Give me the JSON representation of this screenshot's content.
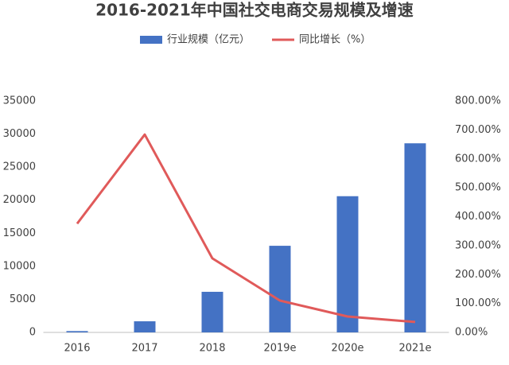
{
  "chart_data": {
    "type": "bar",
    "title": "2016-2021年中国社交电商交易规模及增速",
    "categories": [
      "2016",
      "2017",
      "2018",
      "2019e",
      "2020e",
      "2021e"
    ],
    "series": [
      {
        "name": "行业规模（亿元）",
        "type": "bar",
        "color": "#4472c4",
        "values": [
          200,
          1680,
          6140,
          13100,
          20600,
          28600
        ]
      },
      {
        "name": "同比增长（%）",
        "type": "line",
        "axis": "y2",
        "color": "#e05a5a",
        "values": [
          376,
          684,
          256,
          110,
          55,
          36
        ]
      }
    ],
    "ylim": [
      0,
      35000
    ],
    "yticks": [
      0,
      5000,
      10000,
      15000,
      20000,
      25000,
      30000,
      35000
    ],
    "y2lim": [
      0,
      800
    ],
    "y2ticks": [
      {
        "value": 0,
        "label": "0.00%"
      },
      {
        "value": 100,
        "label": "100.00%"
      },
      {
        "value": 200,
        "label": "200.00%"
      },
      {
        "value": 300,
        "label": "300.00%"
      },
      {
        "value": 400,
        "label": "400.00%"
      },
      {
        "value": 500,
        "label": "500.00%"
      },
      {
        "value": 600,
        "label": "600.00%"
      },
      {
        "value": 700,
        "label": "700.00%"
      },
      {
        "value": 800,
        "label": "800.00%"
      }
    ],
    "grid": false,
    "legend": "top"
  }
}
